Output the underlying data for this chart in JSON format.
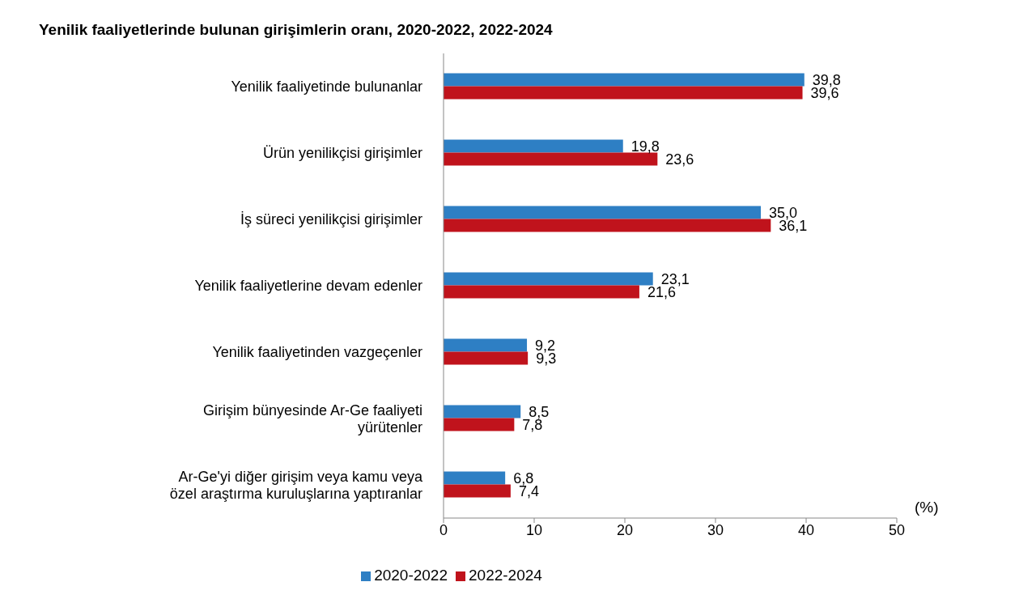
{
  "chart_data": {
    "type": "bar",
    "orientation": "horizontal",
    "title": "Yenilik faaliyetlerinde bulunan girişimlerin oranı, 2020-2022, 2022-2024",
    "xlabel": "(%)",
    "categories": [
      "Yenilik faaliyetinde bulunanlar",
      "Ürün yenilikçisi girişimler",
      "İş süreci yenilikçisi girişimler",
      "Yenilik faaliyetlerine devam edenler",
      "Yenilik faaliyetinden vazgeçenler",
      "Girişim bünyesinde Ar-Ge faaliyeti yürütenler",
      "Ar-Ge'yi diğer girişim veya kamu veya özel araştırma kuruluşlarına yaptıranlar"
    ],
    "series": [
      {
        "name": "2020-2022",
        "color": "#2e7fc4",
        "values": [
          39.8,
          19.8,
          35.0,
          23.1,
          9.2,
          8.5,
          6.8
        ],
        "value_labels": [
          "39,8",
          "19,8",
          "35,0",
          "23,1",
          "9,2",
          "8,5",
          "6,8"
        ]
      },
      {
        "name": "2022-2024",
        "color": "#c0131c",
        "values": [
          39.6,
          23.6,
          36.1,
          21.6,
          9.3,
          7.8,
          7.4
        ],
        "value_labels": [
          "39,6",
          "23,6",
          "36,1",
          "21,6",
          "9,3",
          "7,8",
          "7,4"
        ]
      }
    ],
    "xlim": [
      0,
      50
    ],
    "xticks": [
      0,
      10,
      20,
      30,
      40,
      50
    ],
    "grid": false,
    "legend": "bottom"
  }
}
